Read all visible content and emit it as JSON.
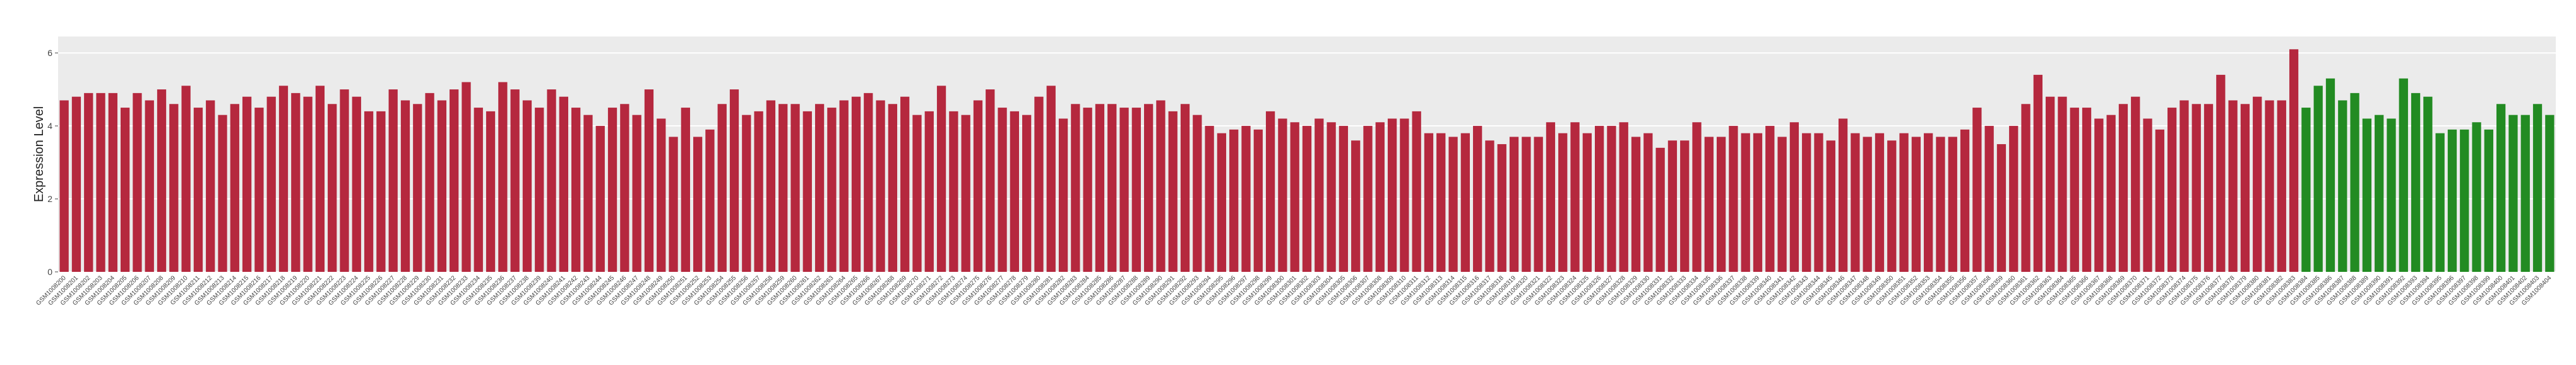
{
  "chart_data": {
    "type": "bar",
    "y_label": "Expression Level",
    "categories": [
      "GSM1008200",
      "GSM1008201",
      "GSM1008202",
      "GSM1008203",
      "GSM1008204",
      "GSM1008205",
      "GSM1008206",
      "GSM1008207",
      "GSM1008208",
      "GSM1008209",
      "GSM1008210",
      "GSM1008211",
      "GSM1008212",
      "GSM1008213",
      "GSM1008214",
      "GSM1008215",
      "GSM1008216",
      "GSM1008217",
      "GSM1008218",
      "GSM1008219",
      "GSM1008220",
      "GSM1008221",
      "GSM1008222",
      "GSM1008223",
      "GSM1008224",
      "GSM1008225",
      "GSM1008226",
      "GSM1008227",
      "GSM1008228",
      "GSM1008229",
      "GSM1008230",
      "GSM1008231",
      "GSM1008232",
      "GSM1008233",
      "GSM1008234",
      "GSM1008235",
      "GSM1008236",
      "GSM1008237",
      "GSM1008238",
      "GSM1008239",
      "GSM1008240",
      "GSM1008241",
      "GSM1008242",
      "GSM1008243",
      "GSM1008244",
      "GSM1008245",
      "GSM1008246",
      "GSM1008247",
      "GSM1008248",
      "GSM1008249",
      "GSM1008250",
      "GSM1008251",
      "GSM1008252",
      "GSM1008253",
      "GSM1008254",
      "GSM1008255",
      "GSM1008256",
      "GSM1008257",
      "GSM1008258",
      "GSM1008259",
      "GSM1008260",
      "GSM1008261",
      "GSM1008262",
      "GSM1008263",
      "GSM1008264",
      "GSM1008265",
      "GSM1008266",
      "GSM1008267",
      "GSM1008268",
      "GSM1008269",
      "GSM1008270",
      "GSM1008271",
      "GSM1008272",
      "GSM1008273",
      "GSM1008274",
      "GSM1008275",
      "GSM1008276",
      "GSM1008277",
      "GSM1008278",
      "GSM1008279",
      "GSM1008280",
      "GSM1008281",
      "GSM1008282",
      "GSM1008283",
      "GSM1008284",
      "GSM1008285",
      "GSM1008286",
      "GSM1008287",
      "GSM1008288",
      "GSM1008289",
      "GSM1008290",
      "GSM1008291",
      "GSM1008292",
      "GSM1008293",
      "GSM1008294",
      "GSM1008295",
      "GSM1008296",
      "GSM1008297",
      "GSM1008298",
      "GSM1008299",
      "GSM1008300",
      "GSM1008301",
      "GSM1008302",
      "GSM1008303",
      "GSM1008304",
      "GSM1008305",
      "GSM1008306",
      "GSM1008307",
      "GSM1008308",
      "GSM1008309",
      "GSM1008310",
      "GSM1008311",
      "GSM1008312",
      "GSM1008313",
      "GSM1008314",
      "GSM1008315",
      "GSM1008316",
      "GSM1008317",
      "GSM1008318",
      "GSM1008319",
      "GSM1008320",
      "GSM1008321",
      "GSM1008322",
      "GSM1008323",
      "GSM1008324",
      "GSM1008325",
      "GSM1008326",
      "GSM1008327",
      "GSM1008328",
      "GSM1008329",
      "GSM1008330",
      "GSM1008331",
      "GSM1008332",
      "GSM1008333",
      "GSM1008334",
      "GSM1008335",
      "GSM1008336",
      "GSM1008337",
      "GSM1008338",
      "GSM1008339",
      "GSM1008340",
      "GSM1008341",
      "GSM1008342",
      "GSM1008343",
      "GSM1008344",
      "GSM1008345",
      "GSM1008346",
      "GSM1008347",
      "GSM1008348",
      "GSM1008349",
      "GSM1008350",
      "GSM1008351",
      "GSM1008352",
      "GSM1008353",
      "GSM1008354",
      "GSM1008355",
      "GSM1008356",
      "GSM1008357",
      "GSM1008358",
      "GSM1008359",
      "GSM1008360",
      "GSM1008361",
      "GSM1008362",
      "GSM1008363",
      "GSM1008364",
      "GSM1008365",
      "GSM1008366",
      "GSM1008367",
      "GSM1008368",
      "GSM1008369",
      "GSM1008370",
      "GSM1008371",
      "GSM1008372",
      "GSM1008373",
      "GSM1008374",
      "GSM1008375",
      "GSM1008376",
      "GSM1008377",
      "GSM1008378",
      "GSM1008379",
      "GSM1008380",
      "GSM1008381",
      "GSM1008382",
      "GSM1008383",
      "GSM1008384",
      "GSM1008385",
      "GSM1008386",
      "GSM1008387",
      "GSM1008388",
      "GSM1008389",
      "GSM1008390",
      "GSM1008391",
      "GSM1008392",
      "GSM1008393",
      "GSM1008394",
      "GSM1008395",
      "GSM1008396",
      "GSM1008397",
      "GSM1008398",
      "GSM1008399",
      "GSM1008400",
      "GSM1008401",
      "GSM1008402",
      "GSM1008403",
      "GSM1008404"
    ],
    "values": [
      4.7,
      4.8,
      4.9,
      4.9,
      4.9,
      4.5,
      4.9,
      4.7,
      5.0,
      4.6,
      5.1,
      4.5,
      4.7,
      4.3,
      4.6,
      4.8,
      4.5,
      4.8,
      5.1,
      4.9,
      4.8,
      5.1,
      4.6,
      5.0,
      4.8,
      4.4,
      4.4,
      5.0,
      4.7,
      4.6,
      4.9,
      4.7,
      5.0,
      5.2,
      4.5,
      4.4,
      5.2,
      5.0,
      4.7,
      4.5,
      5.0,
      4.8,
      4.5,
      4.3,
      4.0,
      4.5,
      4.6,
      4.3,
      5.0,
      4.2,
      3.7,
      4.5,
      3.7,
      3.9,
      4.6,
      5.0,
      4.3,
      4.4,
      4.7,
      4.6,
      4.6,
      4.4,
      4.6,
      4.5,
      4.7,
      4.8,
      4.9,
      4.7,
      4.6,
      4.8,
      4.3,
      4.4,
      5.1,
      4.4,
      4.3,
      4.7,
      5.0,
      4.5,
      4.4,
      4.3,
      4.8,
      5.1,
      4.2,
      4.6,
      4.5,
      4.6,
      4.6,
      4.5,
      4.5,
      4.6,
      4.7,
      4.4,
      4.6,
      4.3,
      4.0,
      3.8,
      3.9,
      4.0,
      3.9,
      4.4,
      4.2,
      4.1,
      4.0,
      4.2,
      4.1,
      4.0,
      3.6,
      4.0,
      4.1,
      4.2,
      4.2,
      4.4,
      3.8,
      3.8,
      3.7,
      3.8,
      4.0,
      3.6,
      3.5,
      3.7,
      3.7,
      3.7,
      4.1,
      3.8,
      4.1,
      3.8,
      4.0,
      4.0,
      4.1,
      3.7,
      3.8,
      3.4,
      3.6,
      3.6,
      4.1,
      3.7,
      3.7,
      4.0,
      3.8,
      3.8,
      4.0,
      3.7,
      4.1,
      3.8,
      3.8,
      3.6,
      4.2,
      3.8,
      3.7,
      3.8,
      3.6,
      3.8,
      3.7,
      3.8,
      3.7,
      3.7,
      3.9,
      4.5,
      4.0,
      3.5,
      4.0,
      4.6,
      5.4,
      4.8,
      4.8,
      4.5,
      4.5,
      4.2,
      4.3,
      4.6,
      4.8,
      4.2,
      3.9,
      4.5,
      4.7,
      4.6,
      4.6,
      5.4,
      4.7,
      4.6,
      4.8,
      4.7,
      4.7,
      6.1,
      4.5,
      5.1,
      5.3,
      4.7,
      4.9,
      4.2,
      4.3,
      4.2,
      5.3,
      4.9,
      4.8,
      3.8,
      3.9,
      3.9,
      4.1,
      3.9,
      4.6,
      4.3,
      4.3,
      4.6,
      4.3
    ],
    "colors": [
      "#b5283e",
      "#b5283e",
      "#b5283e",
      "#b5283e",
      "#b5283e",
      "#b5283e",
      "#b5283e",
      "#b5283e",
      "#b5283e",
      "#b5283e",
      "#b5283e",
      "#b5283e",
      "#b5283e",
      "#b5283e",
      "#b5283e",
      "#b5283e",
      "#b5283e",
      "#b5283e",
      "#b5283e",
      "#b5283e",
      "#b5283e",
      "#b5283e",
      "#b5283e",
      "#b5283e",
      "#b5283e",
      "#b5283e",
      "#b5283e",
      "#b5283e",
      "#b5283e",
      "#b5283e",
      "#b5283e",
      "#b5283e",
      "#b5283e",
      "#b5283e",
      "#b5283e",
      "#b5283e",
      "#b5283e",
      "#b5283e",
      "#b5283e",
      "#b5283e",
      "#b5283e",
      "#b5283e",
      "#b5283e",
      "#b5283e",
      "#b5283e",
      "#b5283e",
      "#b5283e",
      "#b5283e",
      "#b5283e",
      "#b5283e",
      "#b5283e",
      "#b5283e",
      "#b5283e",
      "#b5283e",
      "#b5283e",
      "#b5283e",
      "#b5283e",
      "#b5283e",
      "#b5283e",
      "#b5283e",
      "#b5283e",
      "#b5283e",
      "#b5283e",
      "#b5283e",
      "#b5283e",
      "#b5283e",
      "#b5283e",
      "#b5283e",
      "#b5283e",
      "#b5283e",
      "#b5283e",
      "#b5283e",
      "#b5283e",
      "#b5283e",
      "#b5283e",
      "#b5283e",
      "#b5283e",
      "#b5283e",
      "#b5283e",
      "#b5283e",
      "#b5283e",
      "#b5283e",
      "#b5283e",
      "#b5283e",
      "#b5283e",
      "#b5283e",
      "#b5283e",
      "#b5283e",
      "#b5283e",
      "#b5283e",
      "#b5283e",
      "#b5283e",
      "#b5283e",
      "#b5283e",
      "#b5283e",
      "#b5283e",
      "#b5283e",
      "#b5283e",
      "#b5283e",
      "#b5283e",
      "#b5283e",
      "#b5283e",
      "#b5283e",
      "#b5283e",
      "#b5283e",
      "#b5283e",
      "#b5283e",
      "#b5283e",
      "#b5283e",
      "#b5283e",
      "#b5283e",
      "#b5283e",
      "#b5283e",
      "#b5283e",
      "#b5283e",
      "#b5283e",
      "#b5283e",
      "#b5283e",
      "#b5283e",
      "#b5283e",
      "#b5283e",
      "#b5283e",
      "#b5283e",
      "#b5283e",
      "#b5283e",
      "#b5283e",
      "#b5283e",
      "#b5283e",
      "#b5283e",
      "#b5283e",
      "#b5283e",
      "#b5283e",
      "#b5283e",
      "#b5283e",
      "#b5283e",
      "#b5283e",
      "#b5283e",
      "#b5283e",
      "#b5283e",
      "#b5283e",
      "#b5283e",
      "#b5283e",
      "#b5283e",
      "#b5283e",
      "#b5283e",
      "#b5283e",
      "#b5283e",
      "#b5283e",
      "#b5283e",
      "#b5283e",
      "#b5283e",
      "#b5283e",
      "#b5283e",
      "#b5283e",
      "#b5283e",
      "#b5283e",
      "#b5283e",
      "#b5283e",
      "#b5283e",
      "#b5283e",
      "#b5283e",
      "#b5283e",
      "#b5283e",
      "#b5283e",
      "#b5283e",
      "#b5283e",
      "#b5283e",
      "#b5283e",
      "#b5283e",
      "#b5283e",
      "#b5283e",
      "#b5283e",
      "#b5283e",
      "#b5283e",
      "#b5283e",
      "#b5283e",
      "#b5283e",
      "#b5283e",
      "#b5283e",
      "#b5283e",
      "#b5283e",
      "#b5283e",
      "#b5283e",
      "#b5283e",
      "#228b22",
      "#228b22",
      "#228b22",
      "#228b22",
      "#228b22",
      "#228b22",
      "#228b22",
      "#228b22",
      "#228b22",
      "#228b22",
      "#228b22",
      "#228b22",
      "#228b22",
      "#228b22",
      "#228b22",
      "#228b22",
      "#228b22",
      "#228b22",
      "#228b22",
      "#228b22",
      "#228b22"
    ],
    "ylim": [
      0,
      6.45
    ],
    "yticks": [
      0,
      2,
      4,
      6
    ],
    "grid": true
  }
}
